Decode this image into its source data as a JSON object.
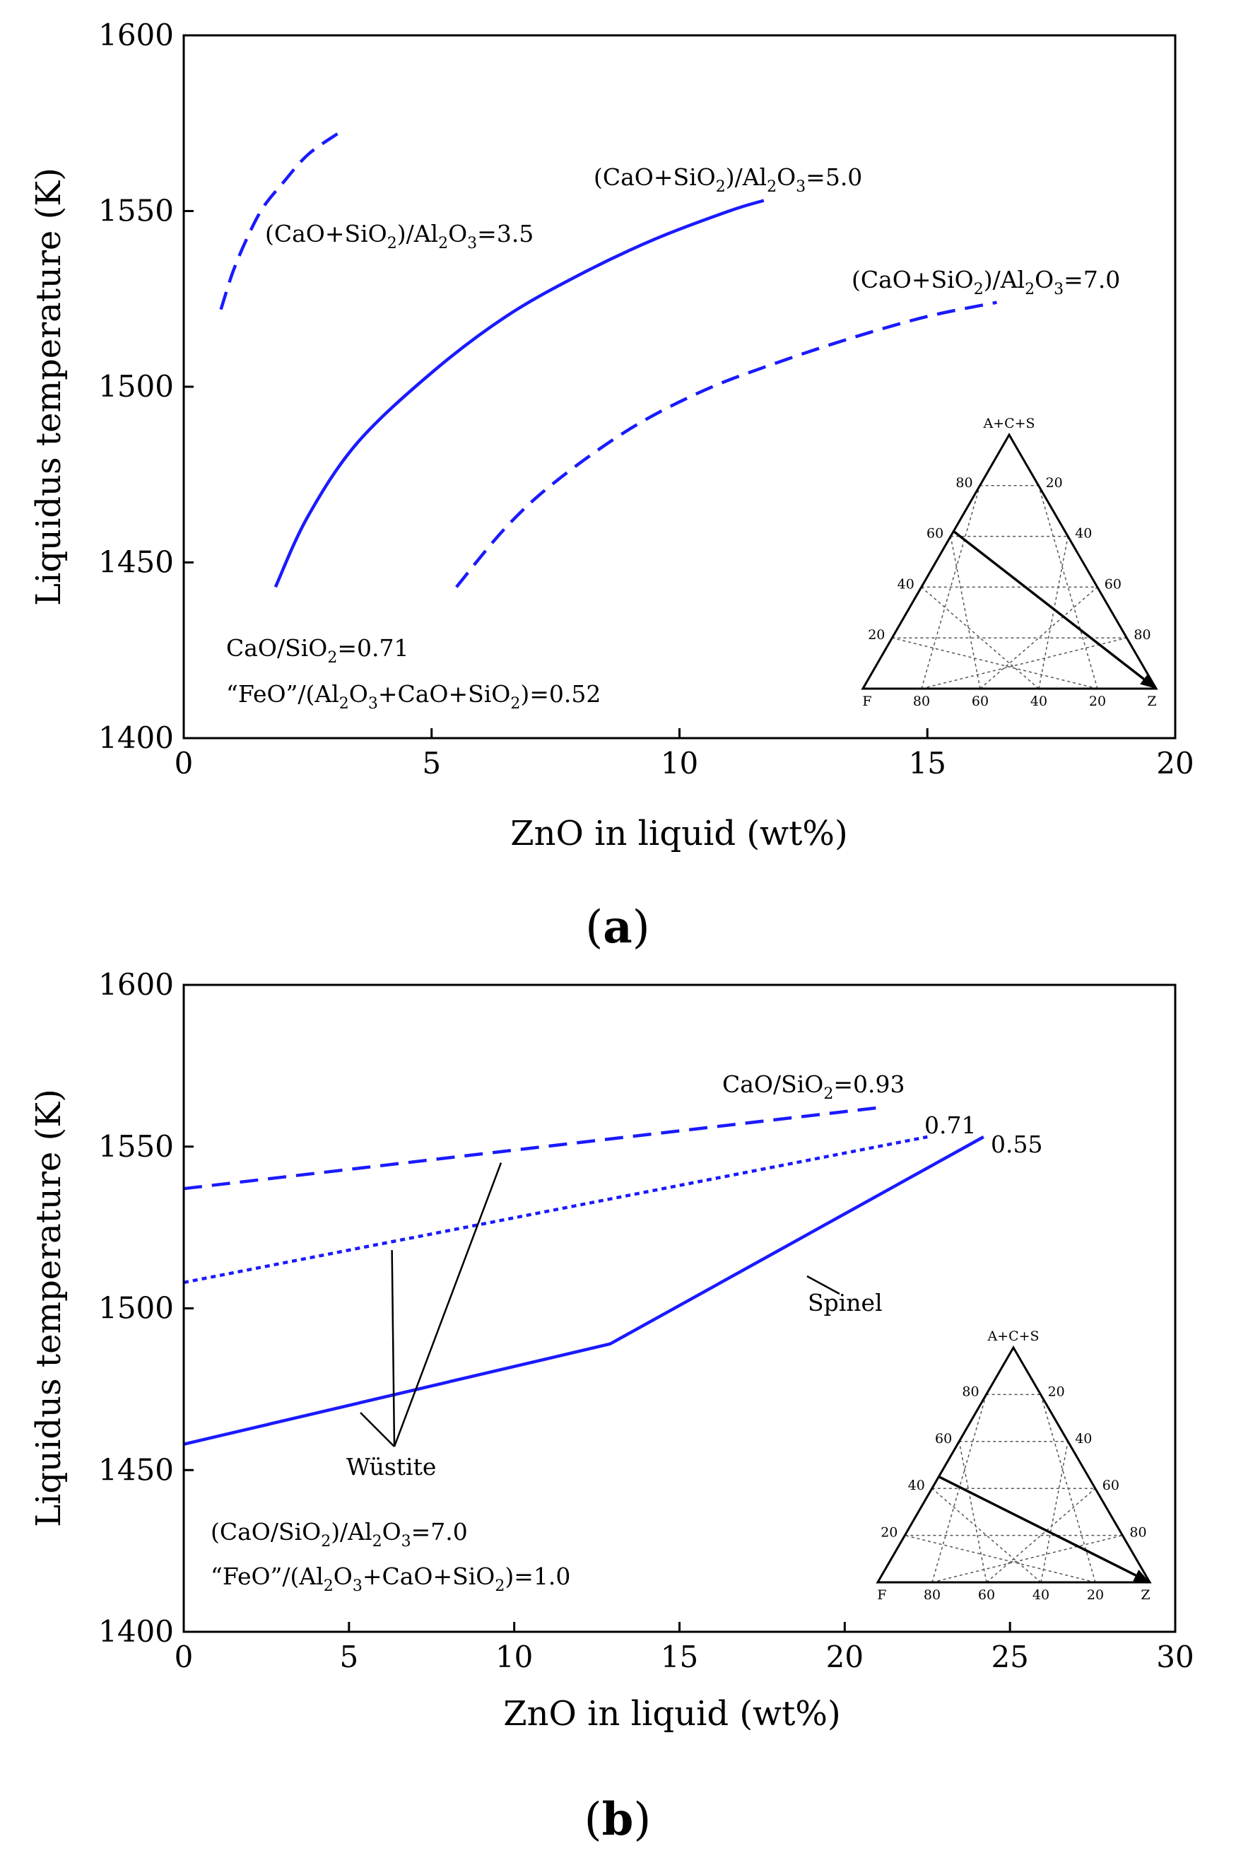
{
  "figure": {
    "panels": [
      "a",
      "b"
    ]
  },
  "chart_data": [
    {
      "type": "line",
      "panel_label": "a",
      "xlabel": "ZnO in liquid (wt%)",
      "ylabel": "Liquidus temperature (K)",
      "xlim": [
        0,
        20
      ],
      "ylim": [
        1400,
        1600
      ],
      "xticks": [
        0,
        5,
        10,
        15,
        20
      ],
      "yticks": [
        1400,
        1450,
        1500,
        1550,
        1600
      ],
      "series": [
        {
          "name": "(CaO+SiO2)/Al2O3=3.5",
          "style": "dashed",
          "x": [
            0.75,
            1.0,
            1.3,
            1.6,
            2.0,
            2.5,
            3.1
          ],
          "y": [
            1522,
            1533,
            1543,
            1551,
            1558,
            1566,
            1572
          ]
        },
        {
          "name": "(CaO+SiO2)/Al2O3=5.0",
          "style": "solid",
          "x": [
            1.85,
            2.5,
            3.5,
            5.0,
            6.5,
            8.0,
            9.5,
            11.0,
            11.7
          ],
          "y": [
            1443,
            1463,
            1484,
            1504,
            1520,
            1532,
            1542,
            1550,
            1553
          ]
        },
        {
          "name": "(CaO+SiO2)/Al2O3=7.0",
          "style": "dashed",
          "x": [
            5.5,
            6.5,
            7.5,
            9.0,
            10.5,
            12.0,
            13.5,
            15.0,
            16.4
          ],
          "y": [
            1443,
            1460,
            1473,
            1488,
            1499,
            1507,
            1514,
            1520,
            1524
          ]
        }
      ],
      "series_labels": {
        "r35": {
          "a": "(CaO+SiO",
          "b": "2",
          "c": ")/Al",
          "d": "2",
          "e": "O",
          "f": "3",
          "g": "=3.5"
        },
        "r50": {
          "a": "(CaO+SiO",
          "b": "2",
          "c": ")/Al",
          "d": "2",
          "e": "O",
          "f": "3",
          "g": "=5.0"
        },
        "r70": {
          "a": "(CaO+SiO",
          "b": "2",
          "c": ")/Al",
          "d": "2",
          "e": "O",
          "f": "3",
          "g": "=7.0"
        }
      },
      "notes": {
        "cao_sio2": {
          "a": "CaO/SiO",
          "b": "2",
          "c": "=0.71"
        },
        "feo": {
          "a": "“FeO”/(Al",
          "b": "2",
          "c": "O",
          "d": "3",
          "e": "+CaO+SiO",
          "f": "2",
          "g": ")=0.52"
        }
      },
      "inset_ternary": {
        "apex_top": "A+C+S",
        "apex_left": "F",
        "apex_right": "Z",
        "left_edge_ticks": [
          "20",
          "40",
          "60",
          "80"
        ],
        "right_edge_ticks": [
          "20",
          "40",
          "60",
          "80"
        ],
        "bottom_edge_ticks": [
          "80",
          "60",
          "40",
          "20"
        ],
        "path_start_fraction_on_left_edge": 0.62,
        "path_end": "Z"
      }
    },
    {
      "type": "line",
      "panel_label": "b",
      "xlabel": "ZnO in liquid (wt%)",
      "ylabel": "Liquidus temperature (K)",
      "xlim": [
        0,
        30
      ],
      "ylim": [
        1400,
        1600
      ],
      "xticks": [
        0,
        5,
        10,
        15,
        20,
        25,
        30
      ],
      "yticks": [
        1400,
        1450,
        1500,
        1550,
        1600
      ],
      "series": [
        {
          "name": "CaO/SiO2=0.93",
          "style": "dashed",
          "x": [
            0,
            21.0
          ],
          "y": [
            1537,
            1562
          ]
        },
        {
          "name": "0.71",
          "style": "dotted",
          "x": [
            0,
            22.5
          ],
          "y": [
            1508,
            1553
          ]
        },
        {
          "name": "0.55",
          "style": "solid",
          "x": [
            0,
            12.9,
            24.2
          ],
          "y": [
            1458,
            1489,
            1553
          ]
        }
      ],
      "series_labels": {
        "r093": {
          "a": "CaO/SiO",
          "b": "2",
          "c": "=0.93"
        },
        "r071": "0.71",
        "r055": "0.55"
      },
      "annotations": {
        "spinel": "Spinel",
        "wustite": "Wüstite"
      },
      "notes": {
        "ratio": {
          "a": "(CaO/SiO",
          "b": "2",
          "c": ")/Al",
          "d": "2",
          "e": "O",
          "f": "3",
          "g": "=7.0"
        },
        "feo": {
          "a": "“FeO”/(Al",
          "b": "2",
          "c": "O",
          "d": "3",
          "e": "+CaO+SiO",
          "f": "2",
          "g": ")=1.0"
        }
      },
      "inset_ternary": {
        "apex_top": "A+C+S",
        "apex_left": "F",
        "apex_right": "Z",
        "left_edge_ticks": [
          "20",
          "40",
          "60",
          "80"
        ],
        "right_edge_ticks": [
          "20",
          "40",
          "60",
          "80"
        ],
        "bottom_edge_ticks": [
          "80",
          "60",
          "40",
          "20"
        ],
        "path_start_fraction_on_left_edge": 0.45,
        "path_end": "Z"
      }
    }
  ],
  "colors": {
    "series": "#1a1aff",
    "axis": "#000000"
  }
}
